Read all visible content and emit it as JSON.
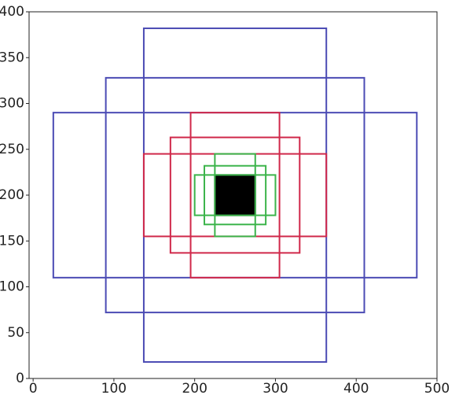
{
  "chart_data": {
    "type": "rectangles",
    "xlim": [
      -5,
      500
    ],
    "ylim": [
      0,
      400
    ],
    "xticks": [
      0,
      100,
      200,
      300,
      400,
      500
    ],
    "yticks": [
      0,
      50,
      100,
      150,
      200,
      250,
      300,
      350,
      400
    ],
    "boxes": [
      {
        "color": "#4b4bb4",
        "x": [
          137,
          363
        ],
        "y": [
          18,
          382
        ],
        "fill": false
      },
      {
        "color": "#4b4bb4",
        "x": [
          90,
          410
        ],
        "y": [
          72,
          328
        ],
        "fill": false
      },
      {
        "color": "#4b4bb4",
        "x": [
          25,
          475
        ],
        "y": [
          110,
          290
        ],
        "fill": false
      },
      {
        "color": "#d0284a",
        "x": [
          195,
          305
        ],
        "y": [
          110,
          290
        ],
        "fill": false
      },
      {
        "color": "#d0284a",
        "x": [
          170,
          330
        ],
        "y": [
          137,
          263
        ],
        "fill": false
      },
      {
        "color": "#d0284a",
        "x": [
          137,
          363
        ],
        "y": [
          155,
          245
        ],
        "fill": false
      },
      {
        "color": "#000000",
        "x": [
          225,
          275
        ],
        "y": [
          178,
          222
        ],
        "fill": true
      },
      {
        "color": "#3cb44b",
        "x": [
          225,
          275
        ],
        "y": [
          155,
          245
        ],
        "fill": false
      },
      {
        "color": "#3cb44b",
        "x": [
          212,
          288
        ],
        "y": [
          168,
          232
        ],
        "fill": false
      },
      {
        "color": "#3cb44b",
        "x": [
          200,
          300
        ],
        "y": [
          178,
          222
        ],
        "fill": false
      }
    ]
  }
}
